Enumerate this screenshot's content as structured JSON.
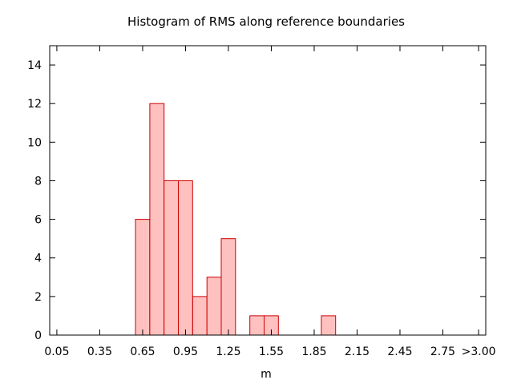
{
  "chart_data": {
    "type": "bar",
    "title": "Histogram of RMS along reference boundaries",
    "xlabel": "m",
    "ylabel": "",
    "x_range": [
      0.0,
      3.05
    ],
    "ylim": [
      0,
      15
    ],
    "x_ticks": [
      {
        "label": "0.05",
        "x": 0.05
      },
      {
        "label": "0.35",
        "x": 0.35
      },
      {
        "label": "0.65",
        "x": 0.65
      },
      {
        "label": "0.95",
        "x": 0.95
      },
      {
        "label": "1.25",
        "x": 1.25
      },
      {
        "label": "1.55",
        "x": 1.55
      },
      {
        "label": "1.85",
        "x": 1.85
      },
      {
        "label": "2.15",
        "x": 2.15
      },
      {
        "label": "2.45",
        "x": 2.45
      },
      {
        "label": "2.75",
        "x": 2.75
      },
      {
        "label": ">3.00",
        "x": 3.0
      }
    ],
    "y_ticks": [
      0,
      2,
      4,
      6,
      8,
      10,
      12,
      14
    ],
    "bin_width": 0.1,
    "bins": [
      {
        "center": 0.65,
        "count": 6
      },
      {
        "center": 0.75,
        "count": 12
      },
      {
        "center": 0.85,
        "count": 8
      },
      {
        "center": 0.95,
        "count": 8
      },
      {
        "center": 1.05,
        "count": 2
      },
      {
        "center": 1.15,
        "count": 3
      },
      {
        "center": 1.25,
        "count": 5
      },
      {
        "center": 1.45,
        "count": 1
      },
      {
        "center": 1.55,
        "count": 1
      },
      {
        "center": 1.95,
        "count": 1
      }
    ],
    "grid": false,
    "colors": {
      "bar_fill": "#ffc0c0",
      "bar_stroke": "#cc0000",
      "axis": "#000000"
    }
  }
}
